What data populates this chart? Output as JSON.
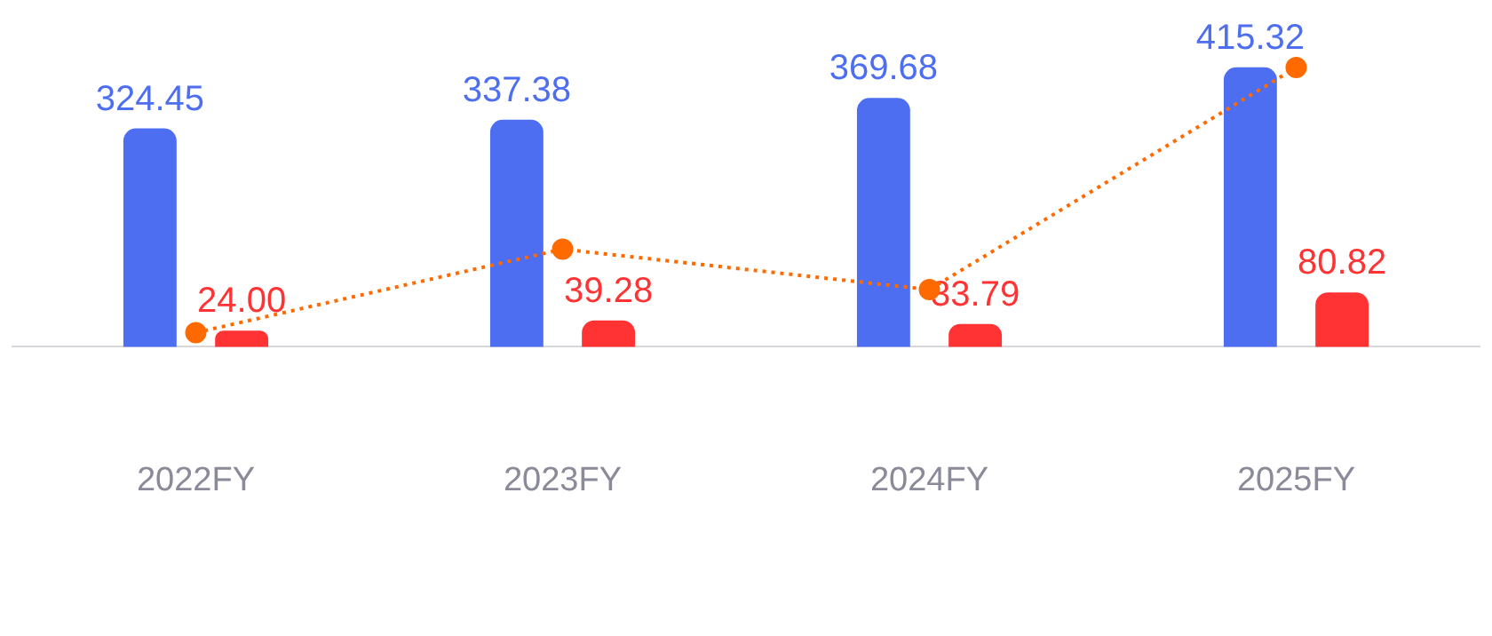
{
  "chart_data": {
    "type": "bar",
    "categories": [
      "2022FY",
      "2023FY",
      "2024FY",
      "2025FY"
    ],
    "series": [
      {
        "color": "#4e6ef2",
        "values": [
          324.45,
          337.38,
          369.68,
          415.32
        ],
        "value_labels": [
          "324.45",
          "337.38",
          "369.68",
          "415.32"
        ]
      },
      {
        "color": "#ff3333",
        "values": [
          24.0,
          39.28,
          33.79,
          80.82
        ],
        "value_labels": [
          "24.00",
          "39.28",
          "33.79",
          "80.82"
        ]
      },
      {
        "type": "line",
        "color": "#ff6a00",
        "values": [
          21,
          145,
          85,
          415
        ],
        "marker": "circle",
        "line_style": "dotted"
      }
    ],
    "grid": false,
    "legend": false
  }
}
